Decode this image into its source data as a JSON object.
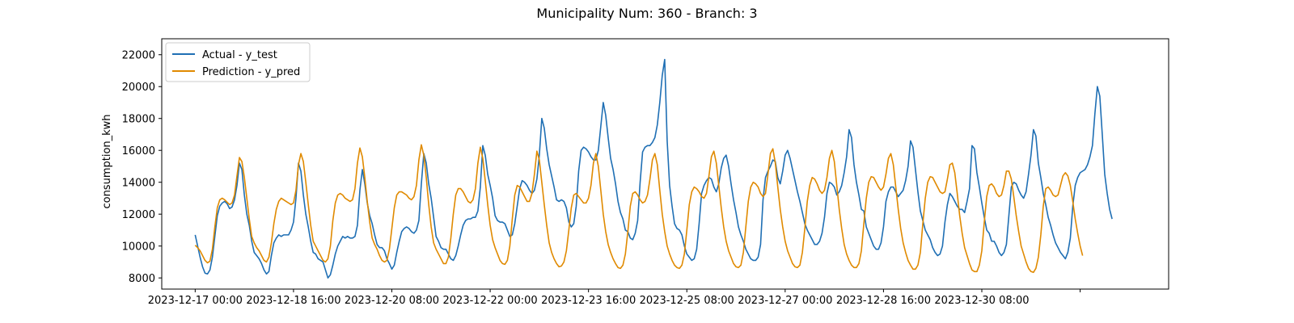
{
  "chart_data": {
    "type": "line",
    "title": "Municipality Num: 360 - Branch: 3",
    "xlabel": "",
    "ylabel": "consumption_kwh",
    "x_start": "2023-12-17 00:00",
    "x_step_hours": 1,
    "xlim_hours": [
      -13.6,
      396.0
    ],
    "ylim": [
      7300,
      23000
    ],
    "yticks": [
      8000,
      10000,
      12000,
      14000,
      16000,
      18000,
      20000,
      22000
    ],
    "xticks": [
      {
        "hour": 0,
        "label": "2023-12-17 00:00"
      },
      {
        "hour": 40,
        "label": "2023-12-18 16:00"
      },
      {
        "hour": 80,
        "label": "2023-12-20 08:00"
      },
      {
        "hour": 120,
        "label": "2023-12-22 00:00"
      },
      {
        "hour": 160,
        "label": "2023-12-23 16:00"
      },
      {
        "hour": 200,
        "label": "2023-12-25 08:00"
      },
      {
        "hour": 240,
        "label": "2023-12-27 00:00"
      },
      {
        "hour": 280,
        "label": "2023-12-28 16:00"
      },
      {
        "hour": 320,
        "label": "2023-12-30 08:00"
      },
      {
        "hour": 360,
        "label": ""
      }
    ],
    "grid": false,
    "legend_position": "upper-left",
    "series": [
      {
        "name": "Actual - y_test",
        "color": "#1f6fb4",
        "values": [
          10700,
          10000,
          9300,
          8700,
          8300,
          8250,
          8500,
          9300,
          10600,
          11900,
          12500,
          12700,
          12800,
          12650,
          12350,
          12450,
          12900,
          13800,
          15200,
          14800,
          13200,
          12000,
          11300,
          10300,
          9600,
          9400,
          9200,
          8900,
          8500,
          8250,
          8400,
          9400,
          10200,
          10500,
          10700,
          10600,
          10700,
          10700,
          10700,
          11000,
          11500,
          13000,
          15200,
          14700,
          13200,
          12000,
          11200,
          10300,
          9600,
          9500,
          9200,
          9100,
          9000,
          8500,
          8000,
          8200,
          8800,
          9500,
          10000,
          10300,
          10600,
          10500,
          10600,
          10500,
          10500,
          10600,
          11300,
          13500,
          14800,
          13900,
          12700,
          11900,
          11400,
          10700,
          10100,
          9900,
          9900,
          9700,
          9200,
          8900,
          8550,
          8800,
          9600,
          10300,
          10900,
          11100,
          11200,
          11100,
          10900,
          10800,
          11000,
          11600,
          13900,
          15800,
          15200,
          13900,
          13000,
          11800,
          10600,
          10300,
          9900,
          9800,
          9800,
          9500,
          9200,
          9100,
          9400,
          10000,
          10700,
          11300,
          11600,
          11700,
          11700,
          11800,
          11800,
          12200,
          13700,
          16300,
          15700,
          14500,
          13800,
          13000,
          11900,
          11600,
          11500,
          11500,
          11400,
          11000,
          10600,
          10700,
          11400,
          12500,
          13600,
          14100,
          14000,
          13800,
          13500,
          13300,
          13500,
          14200,
          15700,
          18000,
          17400,
          16100,
          15100,
          14400,
          13700,
          12900,
          12800,
          12900,
          12800,
          12400,
          11500,
          11200,
          11400,
          12500,
          14700,
          16000,
          16200,
          16100,
          15900,
          15600,
          15400,
          15400,
          16000,
          17500,
          19000,
          18200,
          16800,
          15500,
          14800,
          13900,
          12800,
          12100,
          11700,
          11000,
          10900,
          10500,
          10400,
          10800,
          11600,
          14000,
          15900,
          16200,
          16300,
          16300,
          16500,
          16800,
          17600,
          19000,
          20700,
          21700,
          16600,
          13800,
          12500,
          11400,
          11100,
          11000,
          10700,
          10000,
          9500,
          9300,
          9100,
          9200,
          9800,
          11400,
          13300,
          13800,
          14100,
          14300,
          14200,
          13700,
          13400,
          13900,
          14900,
          15500,
          15700,
          15000,
          13900,
          12900,
          12100,
          11200,
          10700,
          10300,
          9800,
          9500,
          9200,
          9100,
          9100,
          9300,
          10100,
          12900,
          14300,
          14700,
          15000,
          15400,
          15300,
          14300,
          13900,
          14700,
          15700,
          16000,
          15500,
          14800,
          14100,
          13400,
          12800,
          12100,
          11400,
          11000,
          10700,
          10400,
          10100,
          10100,
          10300,
          10800,
          11800,
          13300,
          14000,
          13900,
          13700,
          13200,
          13400,
          13800,
          14600,
          15600,
          17300,
          16800,
          15100,
          14000,
          13200,
          12300,
          12200,
          11200,
          10800,
          10400,
          10000,
          9800,
          9800,
          10200,
          11200,
          12800,
          13400,
          13700,
          13700,
          13400,
          13100,
          13300,
          13500,
          14100,
          15000,
          16600,
          16200,
          14800,
          13400,
          12200,
          11600,
          11000,
          10700,
          10400,
          9900,
          9600,
          9400,
          9500,
          10000,
          11500,
          12600,
          13300,
          13100,
          12800,
          12500,
          12300,
          12300,
          12100,
          12800,
          13600,
          16300,
          16100,
          14600,
          13700,
          12700,
          11800,
          11000,
          10800,
          10300,
          10300,
          10000,
          9600,
          9400,
          9600,
          10100,
          11900,
          13700,
          14000,
          13900,
          13500,
          13200,
          13000,
          13400,
          14500,
          15700,
          17300,
          16900,
          15200,
          14300,
          13300,
          12600,
          11800,
          11300,
          10700,
          10200,
          9900,
          9600,
          9400,
          9200,
          9600,
          10500,
          12500,
          13800,
          14300,
          14600,
          14700,
          14800,
          15100,
          15600,
          16300,
          18300,
          20000,
          19400,
          17000,
          14500,
          13300,
          12300,
          11700
        ]
      },
      {
        "name": "Prediction - y_pred",
        "color": "#e08a00",
        "values": [
          10050,
          9900,
          9700,
          9400,
          9100,
          8950,
          9050,
          9800,
          11200,
          12400,
          12900,
          13000,
          12900,
          12750,
          12600,
          12700,
          13200,
          14400,
          15550,
          15300,
          14300,
          13000,
          11700,
          10600,
          10200,
          9900,
          9700,
          9400,
          9100,
          9000,
          9300,
          10200,
          11400,
          12300,
          12800,
          13000,
          12900,
          12800,
          12700,
          12600,
          12700,
          13500,
          15100,
          15800,
          15300,
          14000,
          12600,
          11300,
          10300,
          10000,
          9700,
          9400,
          9100,
          9000,
          9200,
          10000,
          11600,
          12700,
          13200,
          13300,
          13200,
          13000,
          12900,
          12800,
          12900,
          13600,
          15200,
          16150,
          15600,
          14300,
          12800,
          11500,
          10500,
          10100,
          9800,
          9400,
          9100,
          9000,
          9100,
          9800,
          11100,
          12400,
          13200,
          13400,
          13400,
          13300,
          13200,
          13000,
          12900,
          13100,
          13800,
          15400,
          16350,
          15700,
          14300,
          12600,
          11200,
          10200,
          9800,
          9500,
          9200,
          8900,
          8900,
          9300,
          10500,
          12000,
          13200,
          13600,
          13600,
          13400,
          13100,
          12800,
          12700,
          12900,
          13600,
          15200,
          16200,
          15500,
          14100,
          12600,
          11300,
          10400,
          9900,
          9500,
          9100,
          8900,
          8850,
          9100,
          10000,
          11700,
          13200,
          13800,
          13700,
          13400,
          13100,
          12800,
          12800,
          13300,
          14500,
          15950,
          15400,
          14000,
          12600,
          11300,
          10200,
          9600,
          9200,
          8900,
          8700,
          8750,
          9000,
          9700,
          11000,
          12400,
          13200,
          13300,
          13100,
          12900,
          12700,
          12700,
          13000,
          13800,
          15200,
          15800,
          15000,
          13500,
          12000,
          10900,
          10100,
          9600,
          9200,
          8900,
          8650,
          8600,
          8800,
          9500,
          10900,
          12500,
          13300,
          13400,
          13200,
          12900,
          12700,
          12800,
          13200,
          14200,
          15400,
          15800,
          15100,
          13500,
          12000,
          10900,
          10000,
          9500,
          9100,
          8800,
          8650,
          8600,
          8800,
          9500,
          11000,
          12600,
          13400,
          13700,
          13600,
          13400,
          13100,
          13000,
          13300,
          14400,
          15600,
          15950,
          15200,
          13800,
          12400,
          11200,
          10300,
          9700,
          9300,
          8900,
          8700,
          8650,
          8800,
          9600,
          11200,
          12800,
          13700,
          14000,
          13900,
          13700,
          13300,
          13100,
          13300,
          14500,
          15800,
          16100,
          15200,
          13700,
          12300,
          11200,
          10300,
          9700,
          9300,
          8900,
          8700,
          8650,
          8800,
          9600,
          11100,
          12800,
          13800,
          14300,
          14200,
          13900,
          13500,
          13300,
          13500,
          14300,
          15500,
          16000,
          15300,
          13800,
          12300,
          11100,
          10100,
          9500,
          9100,
          8800,
          8650,
          8650,
          8900,
          9700,
          11400,
          13000,
          14000,
          14350,
          14300,
          14000,
          13700,
          13500,
          13700,
          14500,
          15500,
          15800,
          15100,
          13700,
          12300,
          11100,
          10200,
          9600,
          9100,
          8800,
          8550,
          8550,
          8800,
          9600,
          11400,
          13000,
          14000,
          14350,
          14300,
          14000,
          13700,
          13400,
          13300,
          13400,
          14200,
          15100,
          15200,
          14600,
          13300,
          11900,
          10800,
          9900,
          9400,
          8900,
          8500,
          8400,
          8400,
          8800,
          9700,
          11500,
          13100,
          13800,
          13900,
          13700,
          13300,
          13100,
          13200,
          13800,
          14700,
          14700,
          14200,
          13100,
          11900,
          10900,
          10000,
          9500,
          9000,
          8600,
          8400,
          8350,
          8600,
          9300,
          10700,
          12500,
          13600,
          13700,
          13500,
          13200,
          13100,
          13200,
          13800,
          14400,
          14600,
          14400,
          13800,
          12800,
          11700,
          10800,
          10000,
          9400
        ]
      }
    ]
  }
}
